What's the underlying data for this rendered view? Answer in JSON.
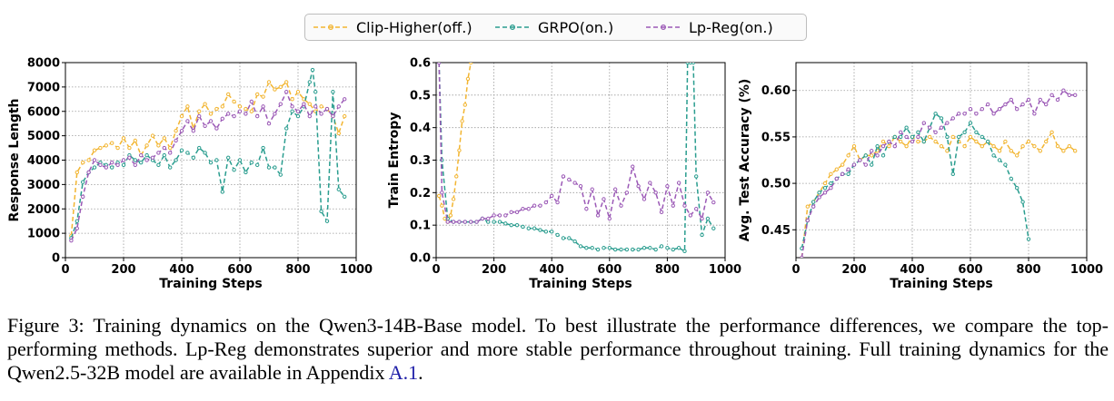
{
  "legend": {
    "items": [
      {
        "label": "Clip-Higher(off.)",
        "color": "#f2b531"
      },
      {
        "label": "GRPO(on.)",
        "color": "#2a9d8f"
      },
      {
        "label": "Lp-Reg(on.)",
        "color": "#9b59b6"
      }
    ]
  },
  "caption": {
    "prefix": "Figure 3: Training dynamics on the Qwen3-14B-Base model. To best illustrate the performance differences, we compare the top-performing methods. Lp-Reg demonstrates superior and more stable performance throughout training. Full training dynamics for the Qwen2.5-32B model are available in Appendix ",
    "ref": "A.1",
    "suffix": "."
  },
  "chart_data": [
    {
      "type": "line",
      "xlabel": "Training Steps",
      "ylabel": "Response Length",
      "xlim": [
        0,
        1000
      ],
      "ylim": [
        0,
        8000
      ],
      "xticks": [
        0,
        200,
        400,
        600,
        800,
        1000
      ],
      "yticks": [
        0,
        1000,
        2000,
        3000,
        4000,
        5000,
        6000,
        7000,
        8000
      ],
      "grid": true,
      "series": [
        {
          "name": "Clip-Higher(off.)",
          "color": "#f2b531",
          "x": [
            20,
            40,
            60,
            80,
            100,
            120,
            140,
            160,
            180,
            200,
            220,
            240,
            260,
            280,
            300,
            320,
            340,
            360,
            380,
            400,
            420,
            440,
            460,
            480,
            500,
            520,
            540,
            560,
            580,
            600,
            620,
            640,
            660,
            680,
            700,
            720,
            740,
            760,
            780,
            800,
            820,
            840,
            860,
            880,
            900,
            920,
            940,
            960
          ],
          "y": [
            900,
            3500,
            3900,
            4000,
            4400,
            4500,
            4600,
            4700,
            4500,
            4900,
            4500,
            4800,
            4200,
            4600,
            5000,
            4600,
            4900,
            4500,
            5200,
            5800,
            6200,
            5300,
            6000,
            6300,
            5900,
            6100,
            6200,
            6700,
            6400,
            6200,
            6100,
            6000,
            6700,
            6600,
            7200,
            6900,
            7000,
            7200,
            6500,
            6800,
            6500,
            6300,
            6000,
            6200,
            6100,
            5800,
            5100,
            5800
          ]
        },
        {
          "name": "GRPO(on.)",
          "color": "#2a9d8f",
          "x": [
            20,
            40,
            60,
            80,
            100,
            120,
            140,
            160,
            180,
            200,
            220,
            240,
            260,
            280,
            300,
            320,
            340,
            360,
            380,
            400,
            420,
            440,
            460,
            480,
            500,
            520,
            540,
            560,
            580,
            600,
            620,
            640,
            660,
            680,
            700,
            720,
            740,
            760,
            780,
            800,
            820,
            840,
            850,
            860,
            880,
            900,
            920,
            940,
            960
          ],
          "y": [
            800,
            1500,
            3100,
            3500,
            3700,
            3900,
            3800,
            3700,
            3900,
            3800,
            4200,
            4000,
            3900,
            4200,
            4000,
            3800,
            4200,
            3700,
            4000,
            4400,
            4300,
            4100,
            4500,
            4300,
            3900,
            4000,
            2700,
            4100,
            3600,
            4000,
            3500,
            3900,
            3800,
            4500,
            3700,
            3700,
            3400,
            5300,
            6000,
            5800,
            6200,
            7200,
            7700,
            6800,
            1900,
            1500,
            6800,
            2800,
            2500
          ]
        },
        {
          "name": "Lp-Reg(on.)",
          "color": "#9b59b6",
          "x": [
            20,
            40,
            60,
            80,
            100,
            120,
            140,
            160,
            180,
            200,
            220,
            240,
            260,
            280,
            300,
            320,
            340,
            360,
            380,
            400,
            420,
            440,
            460,
            480,
            500,
            520,
            540,
            560,
            580,
            600,
            620,
            640,
            660,
            680,
            700,
            720,
            740,
            760,
            780,
            800,
            820,
            840,
            860,
            880,
            900,
            920,
            940,
            960
          ],
          "y": [
            700,
            1200,
            2500,
            3500,
            4000,
            3800,
            3700,
            3900,
            3800,
            4000,
            4100,
            3800,
            4200,
            4000,
            4100,
            4300,
            4500,
            4300,
            4800,
            5200,
            5600,
            5200,
            5800,
            5400,
            5600,
            5300,
            5700,
            5900,
            5800,
            6000,
            5900,
            6400,
            5800,
            6200,
            5500,
            5900,
            6300,
            6800,
            6200,
            6000,
            6300,
            5800,
            6200,
            5900,
            6100,
            5800,
            6200,
            6500
          ]
        }
      ]
    },
    {
      "type": "line",
      "xlabel": "Training Steps",
      "ylabel": "Train Entropy",
      "xlim": [
        0,
        1000
      ],
      "ylim": [
        0,
        0.6
      ],
      "xticks": [
        0,
        200,
        400,
        600,
        800,
        1000
      ],
      "yticks": [
        0.0,
        0.1,
        0.2,
        0.3,
        0.4,
        0.5,
        0.6
      ],
      "grid": true,
      "series": [
        {
          "name": "Clip-Higher(off.)",
          "color": "#f2b531",
          "x": [
            10,
            20,
            30,
            40,
            50,
            60,
            70,
            80,
            90,
            100,
            110,
            120
          ],
          "y": [
            0.19,
            0.16,
            0.12,
            0.11,
            0.13,
            0.18,
            0.25,
            0.33,
            0.42,
            0.47,
            0.55,
            0.6
          ]
        },
        {
          "name": "GRPO(on.)",
          "color": "#2a9d8f",
          "x": [
            10,
            20,
            40,
            60,
            80,
            100,
            120,
            140,
            160,
            180,
            200,
            220,
            240,
            260,
            280,
            300,
            320,
            340,
            360,
            380,
            400,
            420,
            440,
            460,
            480,
            500,
            520,
            540,
            560,
            580,
            600,
            620,
            640,
            660,
            680,
            700,
            720,
            740,
            760,
            780,
            800,
            820,
            840,
            860,
            870,
            880,
            890,
            900,
            920,
            940,
            960
          ],
          "y": [
            0.6,
            0.3,
            0.12,
            0.11,
            0.11,
            0.11,
            0.11,
            0.11,
            0.12,
            0.11,
            0.11,
            0.11,
            0.105,
            0.1,
            0.1,
            0.095,
            0.09,
            0.09,
            0.085,
            0.08,
            0.08,
            0.07,
            0.06,
            0.06,
            0.05,
            0.035,
            0.03,
            0.03,
            0.025,
            0.03,
            0.03,
            0.025,
            0.025,
            0.025,
            0.025,
            0.025,
            0.03,
            0.03,
            0.025,
            0.035,
            0.03,
            0.025,
            0.03,
            0.02,
            0.6,
            0.6,
            0.6,
            0.25,
            0.07,
            0.12,
            0.09
          ]
        },
        {
          "name": "Lp-Reg(on.)",
          "color": "#9b59b6",
          "x": [
            10,
            20,
            40,
            60,
            80,
            100,
            120,
            140,
            160,
            180,
            200,
            220,
            240,
            260,
            280,
            300,
            320,
            340,
            360,
            380,
            400,
            420,
            440,
            460,
            480,
            500,
            520,
            540,
            560,
            580,
            600,
            620,
            640,
            660,
            680,
            700,
            720,
            740,
            760,
            780,
            800,
            820,
            840,
            860,
            880,
            900,
            920,
            940,
            960
          ],
          "y": [
            0.6,
            0.2,
            0.11,
            0.11,
            0.11,
            0.11,
            0.11,
            0.11,
            0.12,
            0.12,
            0.13,
            0.13,
            0.13,
            0.14,
            0.14,
            0.15,
            0.15,
            0.16,
            0.16,
            0.17,
            0.19,
            0.17,
            0.25,
            0.24,
            0.23,
            0.22,
            0.15,
            0.21,
            0.13,
            0.18,
            0.12,
            0.21,
            0.16,
            0.2,
            0.28,
            0.22,
            0.18,
            0.23,
            0.2,
            0.14,
            0.22,
            0.16,
            0.23,
            0.16,
            0.13,
            0.15,
            0.12,
            0.2,
            0.17
          ]
        }
      ]
    },
    {
      "type": "line",
      "xlabel": "Training Steps",
      "ylabel": "Avg. Test Accuracy (%)",
      "xlim": [
        0,
        1000
      ],
      "ylim": [
        0.42,
        0.63
      ],
      "xticks": [
        0,
        200,
        400,
        600,
        800,
        1000
      ],
      "yticks": [
        0.45,
        0.5,
        0.55,
        0.6
      ],
      "grid": true,
      "series": [
        {
          "name": "Clip-Higher(off.)",
          "color": "#f2b531",
          "x": [
            20,
            40,
            60,
            80,
            100,
            120,
            140,
            160,
            180,
            200,
            220,
            240,
            260,
            280,
            300,
            320,
            340,
            360,
            380,
            400,
            420,
            440,
            460,
            480,
            500,
            520,
            540,
            560,
            580,
            600,
            620,
            640,
            660,
            680,
            700,
            720,
            740,
            760,
            780,
            800,
            820,
            840,
            860,
            880,
            900,
            920,
            940,
            960
          ],
          "y": [
            0.42,
            0.475,
            0.48,
            0.49,
            0.5,
            0.51,
            0.515,
            0.52,
            0.53,
            0.54,
            0.525,
            0.53,
            0.53,
            0.535,
            0.545,
            0.54,
            0.55,
            0.545,
            0.54,
            0.55,
            0.545,
            0.545,
            0.55,
            0.545,
            0.54,
            0.535,
            0.55,
            0.545,
            0.54,
            0.55,
            0.545,
            0.54,
            0.545,
            0.54,
            0.535,
            0.545,
            0.535,
            0.53,
            0.54,
            0.545,
            0.54,
            0.535,
            0.545,
            0.555,
            0.54,
            0.535,
            0.54,
            0.535
          ]
        },
        {
          "name": "GRPO(on.)",
          "color": "#2a9d8f",
          "x": [
            20,
            40,
            60,
            80,
            100,
            120,
            140,
            160,
            180,
            200,
            220,
            240,
            260,
            280,
            300,
            320,
            340,
            360,
            380,
            400,
            420,
            440,
            460,
            480,
            500,
            520,
            540,
            560,
            580,
            600,
            620,
            640,
            660,
            680,
            700,
            720,
            740,
            760,
            780,
            800
          ],
          "y": [
            0.43,
            0.46,
            0.48,
            0.49,
            0.495,
            0.5,
            0.505,
            0.51,
            0.51,
            0.52,
            0.525,
            0.53,
            0.52,
            0.54,
            0.53,
            0.545,
            0.55,
            0.55,
            0.56,
            0.55,
            0.555,
            0.545,
            0.56,
            0.575,
            0.57,
            0.55,
            0.51,
            0.55,
            0.555,
            0.565,
            0.555,
            0.55,
            0.545,
            0.53,
            0.525,
            0.52,
            0.505,
            0.495,
            0.48,
            0.44
          ]
        },
        {
          "name": "Lp-Reg(on.)",
          "color": "#9b59b6",
          "x": [
            20,
            40,
            60,
            80,
            100,
            120,
            140,
            160,
            180,
            200,
            220,
            240,
            260,
            280,
            300,
            320,
            340,
            360,
            380,
            400,
            420,
            440,
            460,
            480,
            500,
            520,
            540,
            560,
            580,
            600,
            620,
            640,
            660,
            680,
            700,
            720,
            740,
            760,
            780,
            800,
            820,
            840,
            860,
            880,
            900,
            920,
            940,
            960
          ],
          "y": [
            0.42,
            0.46,
            0.475,
            0.485,
            0.49,
            0.495,
            0.505,
            0.51,
            0.515,
            0.52,
            0.525,
            0.52,
            0.535,
            0.53,
            0.54,
            0.545,
            0.54,
            0.555,
            0.55,
            0.545,
            0.55,
            0.565,
            0.56,
            0.555,
            0.56,
            0.565,
            0.57,
            0.575,
            0.575,
            0.58,
            0.575,
            0.58,
            0.585,
            0.575,
            0.58,
            0.585,
            0.59,
            0.58,
            0.585,
            0.59,
            0.575,
            0.59,
            0.585,
            0.595,
            0.59,
            0.6,
            0.595,
            0.595
          ]
        }
      ]
    }
  ]
}
